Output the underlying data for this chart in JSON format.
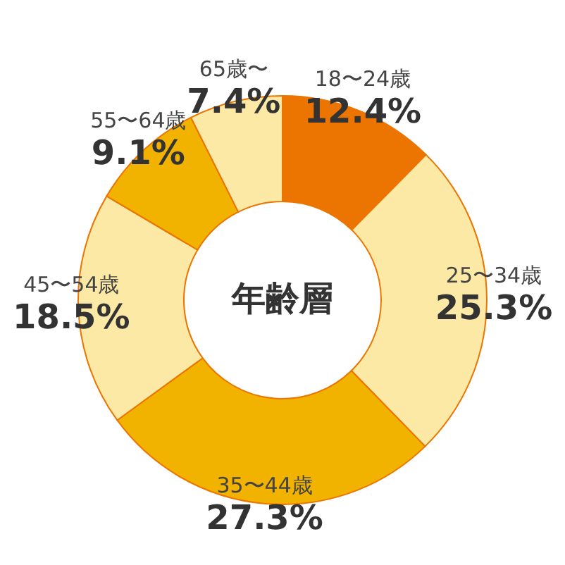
{
  "chart_data": {
    "type": "donut",
    "title": "年齢層",
    "categories": [
      "18〜24歳",
      "25〜34歳",
      "35〜44歳",
      "45〜54歳",
      "55〜64歳",
      "65歳〜"
    ],
    "values": [
      12.4,
      25.3,
      27.3,
      18.5,
      9.1,
      7.4
    ],
    "value_labels": [
      "12.4%",
      "25.3%",
      "27.3%",
      "18.5%",
      "9.1%",
      "7.4%"
    ],
    "colors": [
      "#eb7500",
      "#fde9a6",
      "#f2b200",
      "#fde9a6",
      "#f2b200",
      "#fde9a6"
    ],
    "legend": false
  }
}
